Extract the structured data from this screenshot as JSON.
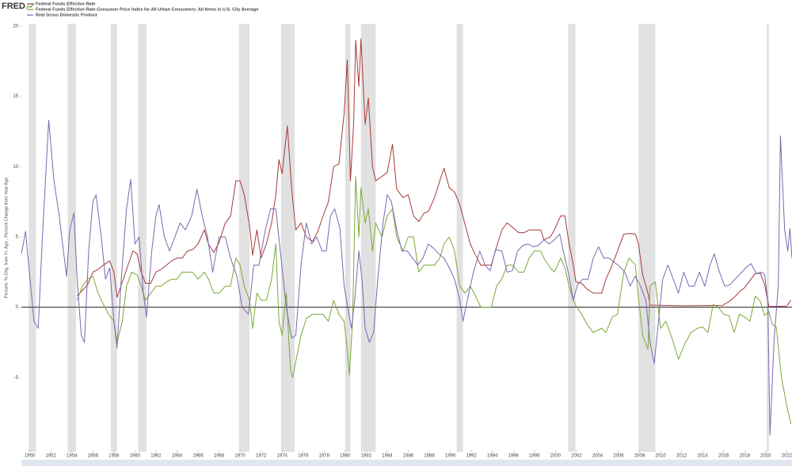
{
  "chart_data": {
    "type": "line",
    "logo": "FRED",
    "y_label": "Percent, % Chg. from Yr. Ago , Percent Change from Year Ago",
    "xlim": [
      1949.2,
      2022.5
    ],
    "ylim": [
      -10,
      20
    ],
    "yticks": [
      -5,
      0,
      5,
      10,
      15,
      20
    ],
    "xticks": [
      1950,
      1952,
      1954,
      1956,
      1958,
      1960,
      1962,
      1964,
      1966,
      1968,
      1970,
      1972,
      1974,
      1976,
      1978,
      1980,
      1982,
      1984,
      1986,
      1988,
      1990,
      1992,
      1994,
      1996,
      1998,
      2000,
      2002,
      2004,
      2006,
      2008,
      2010,
      2012,
      2014,
      2016,
      2018,
      2020,
      2022
    ],
    "recession_color": "#e1e1e1",
    "recessions": [
      [
        1949.9,
        1950.6
      ],
      [
        1953.6,
        1954.4
      ],
      [
        1957.7,
        1958.3
      ],
      [
        1960.3,
        1961.1
      ],
      [
        1969.9,
        1970.9
      ],
      [
        1973.9,
        1975.2
      ],
      [
        1980.0,
        1980.5
      ],
      [
        1981.5,
        1982.9
      ],
      [
        1990.6,
        1991.2
      ],
      [
        2001.2,
        2001.9
      ],
      [
        2007.9,
        2009.5
      ],
      [
        2020.1,
        2020.3
      ]
    ],
    "series": [
      {
        "name": "Federal Funds Effective Rate",
        "color": "#a83a3a",
        "x": [
          1954.5,
          1955.0,
          1955.5,
          1956.0,
          1956.5,
          1957.0,
          1957.6,
          1958.0,
          1958.3,
          1958.8,
          1959.3,
          1959.8,
          1960.2,
          1960.6,
          1961.0,
          1961.5,
          1962.0,
          1962.5,
          1963.0,
          1963.5,
          1964.0,
          1964.5,
          1965.0,
          1965.5,
          1966.0,
          1966.6,
          1967.0,
          1967.5,
          1968.0,
          1968.6,
          1969.1,
          1969.6,
          1970.0,
          1970.4,
          1970.9,
          1971.2,
          1971.6,
          1972.0,
          1972.5,
          1973.0,
          1973.4,
          1973.7,
          1974.0,
          1974.5,
          1974.9,
          1975.3,
          1975.8,
          1976.3,
          1976.9,
          1977.4,
          1977.9,
          1978.4,
          1978.9,
          1979.4,
          1979.9,
          1980.2,
          1980.5,
          1980.8,
          1981.0,
          1981.3,
          1981.5,
          1981.9,
          1982.2,
          1982.6,
          1982.9,
          1983.5,
          1984.0,
          1984.5,
          1984.9,
          1985.5,
          1986.0,
          1986.5,
          1987.0,
          1987.5,
          1987.9,
          1988.5,
          1989.0,
          1989.4,
          1989.9,
          1990.4,
          1990.9,
          1991.4,
          1991.9,
          1992.4,
          1992.9,
          1993.5,
          1993.9,
          1994.4,
          1994.9,
          1995.4,
          1995.9,
          1996.5,
          1997.0,
          1997.5,
          1998.0,
          1998.6,
          1998.9,
          1999.5,
          1999.9,
          2000.5,
          2000.9,
          2001.3,
          2001.7,
          2001.95,
          2002.5,
          2003.0,
          2003.6,
          2004.4,
          2004.8,
          2005.4,
          2005.9,
          2006.5,
          2007.0,
          2007.6,
          2007.9,
          2008.3,
          2008.8,
          2009.0,
          2012.0,
          2015.9,
          2016.5,
          2017.0,
          2017.5,
          2018.0,
          2018.5,
          2019.0,
          2019.5,
          2019.9,
          2020.3,
          2022.0,
          2022.4
        ],
        "values": [
          0.8,
          1.2,
          1.6,
          2.5,
          2.7,
          3,
          3.3,
          2.5,
          0.7,
          1.8,
          2.9,
          4,
          3.8,
          2.5,
          1.7,
          1.7,
          2.5,
          2.7,
          3,
          3.3,
          3.5,
          3.5,
          4,
          4.1,
          4.5,
          5.5,
          4.5,
          3.9,
          4.6,
          6,
          6.5,
          9,
          9,
          8,
          5.8,
          3.7,
          5.5,
          3.5,
          4.5,
          6,
          8,
          10.5,
          9.5,
          12.9,
          8.5,
          5.5,
          6,
          5,
          4.7,
          5.4,
          6.5,
          7.5,
          10,
          10.2,
          13.8,
          17.6,
          9,
          13,
          19,
          15.7,
          19.1,
          13,
          14.9,
          10,
          9,
          9.3,
          9.6,
          11.6,
          8.4,
          7.8,
          8,
          6.5,
          6.1,
          6.7,
          6.8,
          7.8,
          9,
          9.9,
          8.5,
          8.2,
          7.3,
          5.9,
          4.5,
          3.7,
          3,
          3,
          3,
          4.3,
          5.5,
          6,
          5.7,
          5.3,
          5.3,
          5.5,
          5.5,
          5.5,
          4.8,
          5,
          5.5,
          6.5,
          6.5,
          4.5,
          3,
          1.8,
          1.7,
          1.3,
          1,
          1,
          2,
          3,
          4,
          5.2,
          5.25,
          5.2,
          4.5,
          2.3,
          1,
          0.15,
          0.1,
          0.13,
          0.4,
          0.7,
          1.1,
          1.4,
          1.9,
          2.4,
          2.4,
          1.6,
          0.05,
          0.08,
          0.5
        ]
      },
      {
        "name": "Federal Funds Effective Rate-Consumer Price Index for All Urban Consumers: All Items in U.S. City Average",
        "color": "#7aa83a",
        "x": [
          1954.5,
          1955.0,
          1955.5,
          1956.0,
          1956.5,
          1957.0,
          1957.5,
          1958.0,
          1958.3,
          1958.8,
          1959.2,
          1959.7,
          1960.2,
          1960.6,
          1961.0,
          1961.5,
          1962.0,
          1962.5,
          1963.0,
          1963.5,
          1964.0,
          1964.5,
          1965.0,
          1965.5,
          1966.0,
          1966.6,
          1967.0,
          1967.5,
          1968.0,
          1968.6,
          1969.1,
          1969.6,
          1970.0,
          1970.4,
          1970.9,
          1971.2,
          1971.6,
          1972.0,
          1972.5,
          1973.0,
          1973.4,
          1973.7,
          1974.0,
          1974.4,
          1974.8,
          1975.0,
          1975.4,
          1975.8,
          1976.3,
          1976.9,
          1977.4,
          1977.9,
          1978.4,
          1978.9,
          1979.4,
          1979.9,
          1980.2,
          1980.4,
          1980.7,
          1981.0,
          1981.3,
          1981.5,
          1981.9,
          1982.2,
          1982.6,
          1982.9,
          1983.5,
          1984.0,
          1984.5,
          1984.9,
          1985.5,
          1986.0,
          1986.5,
          1987.0,
          1987.5,
          1987.9,
          1988.5,
          1989.0,
          1989.4,
          1989.9,
          1990.4,
          1990.9,
          1991.4,
          1991.9,
          1992.4,
          1992.9,
          1993.5,
          1993.9,
          1994.4,
          1994.9,
          1995.4,
          1995.9,
          1996.5,
          1997.0,
          1997.5,
          1998.0,
          1998.6,
          1998.9,
          1999.5,
          1999.9,
          2000.5,
          2000.9,
          2001.3,
          2001.7,
          2001.95,
          2002.5,
          2003.0,
          2003.6,
          2004.4,
          2004.8,
          2005.4,
          2005.9,
          2006.5,
          2007.0,
          2007.6,
          2007.9,
          2008.3,
          2008.8,
          2009.0,
          2009.5,
          2010.0,
          2010.5,
          2011.0,
          2011.7,
          2012.3,
          2012.9,
          2013.5,
          2014.0,
          2014.5,
          2015.0,
          2015.5,
          2016.0,
          2016.5,
          2017.0,
          2017.5,
          2018.0,
          2018.5,
          2019.0,
          2019.5,
          2019.9,
          2020.3,
          2020.6,
          2021.0,
          2021.5,
          2022.0,
          2022.4
        ],
        "values": [
          0.5,
          1.5,
          2.0,
          2.2,
          1.0,
          0.2,
          -0.5,
          -1,
          -2.5,
          -1,
          1.5,
          2.5,
          2.3,
          1.5,
          0.5,
          1,
          1.5,
          1.5,
          1.8,
          2,
          2,
          2.5,
          2.5,
          2.5,
          2,
          2.5,
          2,
          1,
          1,
          1.5,
          1.5,
          3.5,
          3,
          1.5,
          0.5,
          -1.5,
          1,
          0.5,
          0.5,
          2,
          4.5,
          -1,
          -2,
          1,
          -4.5,
          -5.0,
          -3.5,
          -2,
          -0.8,
          -0.5,
          -0.5,
          -0.5,
          -1,
          0.5,
          -0.5,
          -1,
          -3,
          -4.8,
          -1,
          9.3,
          5,
          8.5,
          6,
          7,
          4,
          6,
          5,
          6.5,
          7,
          5,
          4,
          5,
          5,
          2.5,
          3,
          3,
          3,
          3.5,
          4.5,
          5,
          4,
          1.5,
          1,
          1.5,
          0.8,
          0,
          0,
          0,
          1.5,
          2,
          3,
          3,
          2.5,
          2.5,
          3.5,
          4,
          4,
          3.5,
          2.8,
          2.5,
          3.5,
          2.8,
          1.5,
          0.5,
          0.1,
          -0.5,
          -1.2,
          -1.8,
          -1.5,
          -1.8,
          -0.7,
          -0.5,
          2.5,
          3.5,
          3,
          0.6,
          -2,
          -3,
          1.5,
          1.8,
          -1.5,
          -1,
          -2,
          -3.7,
          -2.6,
          -1.8,
          -1.5,
          -1.4,
          -1.8,
          0.2,
          0,
          -0.5,
          -0.6,
          -1.8,
          -0.5,
          -0.7,
          -1,
          0.8,
          0.4,
          -0.6,
          -0.3,
          -1.2,
          -1.4,
          -5,
          -7,
          -8.3
        ]
      },
      {
        "name": "Real Gross Domestic Product",
        "color": "#7b68b0",
        "x": [
          1949.2,
          1949.6,
          1950.4,
          1950.8,
          1951.2,
          1951.8,
          1952.3,
          1952.8,
          1953.2,
          1953.5,
          1953.8,
          1954.2,
          1954.5,
          1954.9,
          1955.2,
          1955.6,
          1956.0,
          1956.3,
          1956.8,
          1957.2,
          1957.6,
          1958.0,
          1958.3,
          1958.7,
          1959.2,
          1959.6,
          1960.0,
          1960.4,
          1960.8,
          1961.1,
          1961.6,
          1962.0,
          1962.3,
          1962.8,
          1963.3,
          1963.8,
          1964.3,
          1964.8,
          1965.4,
          1965.9,
          1966.4,
          1966.9,
          1967.4,
          1968.0,
          1968.6,
          1969.1,
          1969.7,
          1970.2,
          1970.8,
          1971.3,
          1971.8,
          1972.4,
          1972.9,
          1973.4,
          1973.9,
          1974.4,
          1974.9,
          1975.3,
          1975.8,
          1976.3,
          1976.8,
          1977.3,
          1977.8,
          1978.2,
          1978.6,
          1979.0,
          1979.5,
          1979.9,
          1980.3,
          1980.6,
          1980.9,
          1981.3,
          1981.6,
          1981.9,
          1982.3,
          1982.7,
          1983.1,
          1983.6,
          1984.0,
          1984.4,
          1984.9,
          1985.4,
          1985.9,
          1986.4,
          1986.9,
          1987.4,
          1987.9,
          1988.4,
          1988.9,
          1989.4,
          1989.9,
          1990.4,
          1990.9,
          1991.2,
          1991.7,
          1992.2,
          1992.8,
          1993.3,
          1993.8,
          1994.3,
          1994.9,
          1995.4,
          1995.9,
          1996.4,
          1996.9,
          1997.4,
          1997.9,
          1998.4,
          1998.9,
          1999.4,
          1999.9,
          2000.4,
          2000.9,
          2001.3,
          2001.7,
          2002.1,
          2002.6,
          2003.1,
          2003.6,
          2004.1,
          2004.6,
          2005.1,
          2005.6,
          2006.1,
          2006.6,
          2007.1,
          2007.6,
          2008.1,
          2008.6,
          2009.0,
          2009.4,
          2009.8,
          2010.2,
          2010.7,
          2011.2,
          2011.7,
          2012.2,
          2012.7,
          2013.2,
          2013.7,
          2014.2,
          2014.7,
          2015.1,
          2015.6,
          2016.1,
          2016.6,
          2017.1,
          2017.6,
          2018.1,
          2018.6,
          2019.1,
          2019.6,
          2019.9,
          2020.2,
          2020.4,
          2020.8,
          2021.2,
          2021.4,
          2021.8,
          2022.1,
          2022.3,
          2022.5
        ],
        "values": [
          3.8,
          5.4,
          -1.0,
          -1.5,
          5,
          13.3,
          9,
          6.5,
          4,
          2.2,
          5.5,
          6.7,
          2,
          -2.0,
          -2.5,
          4,
          7.5,
          8,
          5,
          2,
          2.8,
          -1,
          -2.9,
          2,
          7,
          9.1,
          4.5,
          5,
          1,
          -0.7,
          4,
          6.5,
          7.3,
          5,
          4,
          5,
          6,
          5.5,
          6.5,
          8.4,
          6.5,
          5,
          2.5,
          5,
          5,
          3.5,
          2.2,
          0,
          -0.5,
          3,
          3,
          5.5,
          7,
          7,
          3.5,
          0,
          -2.2,
          -2,
          3,
          6,
          4.5,
          5,
          4,
          4,
          6.5,
          7,
          5.6,
          1.5,
          -0.3,
          -1.5,
          0.5,
          4,
          2,
          -1.5,
          -2.5,
          -1.8,
          2,
          6,
          8,
          7.5,
          5.5,
          4,
          4,
          3.5,
          3,
          3.5,
          4.5,
          4.2,
          3.8,
          3.5,
          2.8,
          2,
          0.5,
          -1.0,
          0.8,
          2.5,
          4,
          3,
          2.6,
          4.1,
          4,
          2.5,
          2.6,
          4,
          4.4,
          4.5,
          4.3,
          4.4,
          4.8,
          4.5,
          4.8,
          5.2,
          3.5,
          2.2,
          0.5,
          1.6,
          2,
          2,
          3.5,
          4.3,
          3.5,
          3.5,
          3.2,
          2.9,
          2.5,
          1.5,
          2.2,
          1.5,
          0.5,
          -2.5,
          -4,
          -1,
          2,
          3,
          2,
          1,
          2.5,
          1.5,
          1.5,
          2.5,
          1.5,
          3,
          3.8,
          2.5,
          1.5,
          1.6,
          2,
          2.4,
          2.8,
          3.1,
          2.4,
          2.5,
          2.3,
          0.5,
          -9.1,
          -2.3,
          1.6,
          12.2,
          5.5,
          4,
          5.6,
          3.5
        ]
      }
    ]
  }
}
